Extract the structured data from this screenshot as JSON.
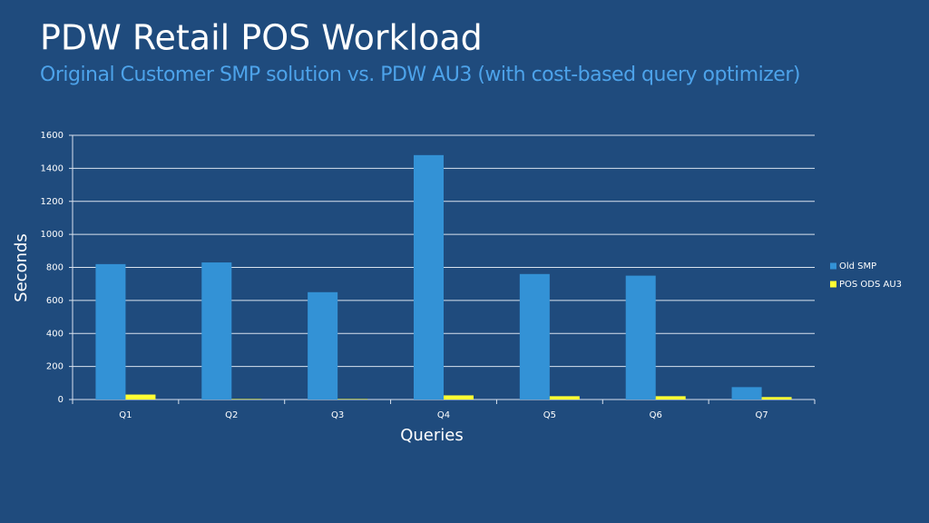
{
  "chart_data": {
    "type": "bar",
    "title": "PDW Retail POS Workload",
    "subtitle": "Original Customer SMP  solution vs. PDW AU3 (with cost-based  query optimizer)",
    "y_label": "Seconds",
    "x_label": "Queries",
    "categories": [
      "Q1",
      "Q2",
      "Q3",
      "Q4",
      "Q5",
      "Q6",
      "Q7"
    ],
    "series": [
      {
        "name": "Old SMP",
        "color": "#3392d6",
        "values": [
          820,
          830,
          650,
          1480,
          760,
          750,
          75
        ]
      },
      {
        "name": "POS ODS AU3",
        "color": "#ffff33",
        "values": [
          30,
          3,
          3,
          25,
          20,
          20,
          15
        ]
      }
    ],
    "ylim": [
      0,
      1600
    ],
    "yticks": [
      0,
      200,
      400,
      600,
      800,
      1000,
      1200,
      1400,
      1600
    ],
    "grid": true,
    "legend": "right"
  }
}
